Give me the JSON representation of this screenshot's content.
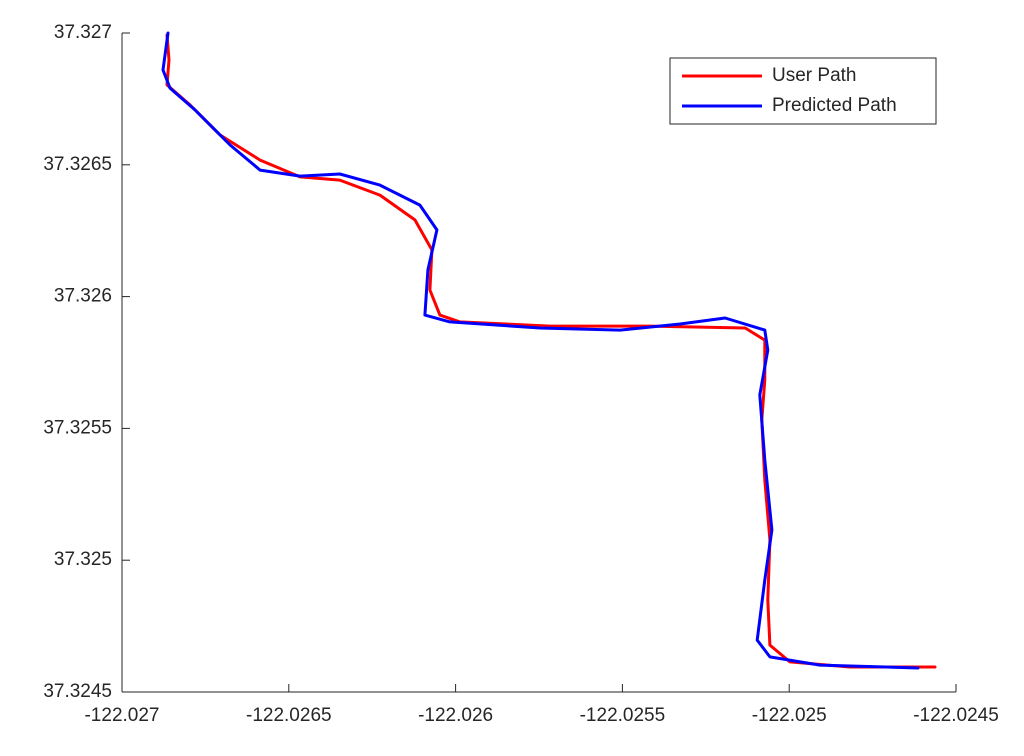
{
  "chart_data": {
    "type": "line",
    "xlim": [
      -122.027,
      -122.0245
    ],
    "ylim": [
      37.3245,
      37.327
    ],
    "xticks": [
      -122.027,
      -122.0265,
      -122.026,
      -122.0255,
      -122.025,
      -122.0245
    ],
    "yticks": [
      37.3245,
      37.325,
      37.3255,
      37.326,
      37.3265,
      37.327
    ],
    "legend": "upper right",
    "series": [
      {
        "name": "User Path",
        "color": "#ff0000",
        "x": [
          -122.026865,
          -122.026859,
          -122.026865,
          -122.026796,
          -122.026706,
          -122.026586,
          -122.026466,
          -122.026347,
          -122.026227,
          -122.026122,
          -122.026071,
          -122.026077,
          -122.026047,
          -122.025987,
          -122.025717,
          -122.025417,
          -122.025132,
          -122.025073,
          -122.025073,
          -122.025082,
          -122.025073,
          -122.025058,
          -122.025064,
          -122.025058,
          -122.024998,
          -122.024818,
          -122.024563
        ],
        "values": [
          37.326992,
          37.326898,
          37.326803,
          37.326727,
          37.326613,
          37.326518,
          37.326454,
          37.326442,
          37.326385,
          37.326291,
          37.326177,
          37.326025,
          37.32593,
          37.325904,
          37.325888,
          37.325888,
          37.325881,
          37.325835,
          37.325684,
          37.325532,
          37.325304,
          37.325077,
          37.324849,
          37.324678,
          37.324614,
          37.324595,
          37.324595
        ]
      },
      {
        "name": "Predicted Path",
        "color": "#0000ff",
        "x": [
          -122.026862,
          -122.026877,
          -122.026856,
          -122.026781,
          -122.026676,
          -122.026586,
          -122.026466,
          -122.026347,
          -122.026227,
          -122.026107,
          -122.026056,
          -122.026083,
          -122.026092,
          -122.026017,
          -122.025747,
          -122.025507,
          -122.025327,
          -122.025192,
          -122.025073,
          -122.025064,
          -122.025088,
          -122.025073,
          -122.025052,
          -122.025073,
          -122.025096,
          -122.025058,
          -122.024908,
          -122.024614
        ],
        "values": [
          37.327,
          37.32686,
          37.326791,
          37.326708,
          37.326575,
          37.32648,
          37.326457,
          37.326465,
          37.326423,
          37.326347,
          37.326253,
          37.326101,
          37.32593,
          37.325904,
          37.325881,
          37.325873,
          37.325896,
          37.325919,
          37.325873,
          37.325797,
          37.325627,
          37.32538,
          37.325115,
          37.324925,
          37.324697,
          37.324633,
          37.324602,
          37.324591
        ]
      }
    ]
  }
}
